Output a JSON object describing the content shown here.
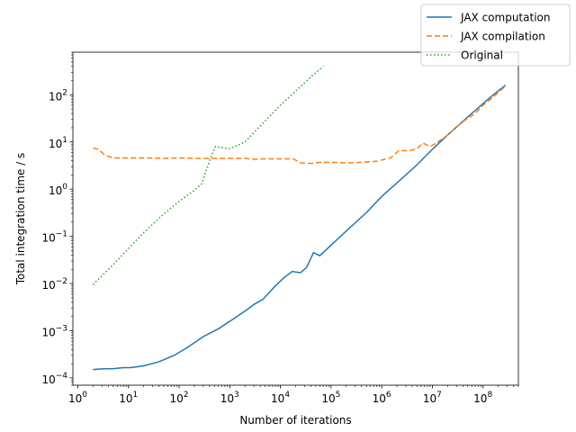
{
  "chart_data": {
    "type": "line",
    "xlabel": "Number of iterations",
    "ylabel": "Total integration time / s",
    "xscale": "log",
    "yscale": "log",
    "xlim": [
      0.8,
      500000000
    ],
    "ylim": [
      7e-05,
      800
    ],
    "grid": false,
    "legend_position": "top-right (outside plot)",
    "xticks": [
      {
        "value": 1,
        "base": "10",
        "exp": "0"
      },
      {
        "value": 10,
        "base": "10",
        "exp": "1"
      },
      {
        "value": 100,
        "base": "10",
        "exp": "2"
      },
      {
        "value": 1000,
        "base": "10",
        "exp": "3"
      },
      {
        "value": 10000,
        "base": "10",
        "exp": "4"
      },
      {
        "value": 100000,
        "base": "10",
        "exp": "5"
      },
      {
        "value": 1000000,
        "base": "10",
        "exp": "6"
      },
      {
        "value": 10000000,
        "base": "10",
        "exp": "7"
      },
      {
        "value": 100000000,
        "base": "10",
        "exp": "8"
      }
    ],
    "yticks": [
      {
        "value": 0.0001,
        "base": "10",
        "exp": "−4"
      },
      {
        "value": 0.001,
        "base": "10",
        "exp": "−3"
      },
      {
        "value": 0.01,
        "base": "10",
        "exp": "−2"
      },
      {
        "value": 0.1,
        "base": "10",
        "exp": "−1"
      },
      {
        "value": 1,
        "label": "10",
        "exp": "0"
      },
      {
        "value": 10,
        "base": "10",
        "exp": "1"
      },
      {
        "value": 100,
        "base": "10",
        "exp": "2"
      }
    ],
    "series": [
      {
        "name": "JAX computation",
        "color": "#1f77b4",
        "style": "solid",
        "points": [
          [
            2,
            0.00015
          ],
          [
            3,
            0.000155
          ],
          [
            5,
            0.000157
          ],
          [
            8,
            0.000165
          ],
          [
            11,
            0.000165
          ],
          [
            20,
            0.00018
          ],
          [
            40,
            0.00022
          ],
          [
            80,
            0.0003
          ],
          [
            150,
            0.00045
          ],
          [
            300,
            0.00075
          ],
          [
            600,
            0.0011
          ],
          [
            1200,
            0.0018
          ],
          [
            2200,
            0.0028
          ],
          [
            3000,
            0.0036
          ],
          [
            4500,
            0.0046
          ],
          [
            8000,
            0.009
          ],
          [
            12000,
            0.0135
          ],
          [
            17000,
            0.018
          ],
          [
            25000,
            0.017
          ],
          [
            33000,
            0.022
          ],
          [
            45000,
            0.045
          ],
          [
            60000,
            0.039
          ],
          [
            100000,
            0.065
          ],
          [
            200000,
            0.13
          ],
          [
            500000,
            0.32
          ],
          [
            1000000,
            0.7
          ],
          [
            2000000,
            1.35
          ],
          [
            5000000,
            3.3
          ],
          [
            10000000,
            7
          ],
          [
            20000000,
            14
          ],
          [
            50000000,
            34
          ],
          [
            100000000,
            65
          ],
          [
            160000000,
            100
          ],
          [
            280000000,
            160
          ]
        ]
      },
      {
        "name": "JAX compilation",
        "color": "#ff7f0e",
        "style": "dashed",
        "points": [
          [
            2,
            7.5
          ],
          [
            2.5,
            7.0
          ],
          [
            3.5,
            5.2
          ],
          [
            5,
            4.6
          ],
          [
            10,
            4.6
          ],
          [
            20,
            4.6
          ],
          [
            50,
            4.5
          ],
          [
            100,
            4.6
          ],
          [
            200,
            4.5
          ],
          [
            500,
            4.5
          ],
          [
            1000,
            4.5
          ],
          [
            2000,
            4.5
          ],
          [
            3000,
            4.3
          ],
          [
            5000,
            4.4
          ],
          [
            10000,
            4.4
          ],
          [
            18000,
            4.4
          ],
          [
            25000,
            3.6
          ],
          [
            40000,
            3.5
          ],
          [
            60000,
            3.7
          ],
          [
            100000,
            3.7
          ],
          [
            200000,
            3.6
          ],
          [
            400000,
            3.7
          ],
          [
            800000,
            3.9
          ],
          [
            1500000,
            4.6
          ],
          [
            2200000,
            6.6
          ],
          [
            3500000,
            6.5
          ],
          [
            5000000,
            7.2
          ],
          [
            6500000,
            9.5
          ],
          [
            9000000,
            8
          ],
          [
            12000000,
            9.5
          ],
          [
            20000000,
            14
          ],
          [
            40000000,
            27
          ],
          [
            70000000,
            40
          ],
          [
            100000000,
            60
          ],
          [
            160000000,
            90
          ],
          [
            280000000,
            155
          ]
        ]
      },
      {
        "name": "Original",
        "color": "#2ca02c",
        "style": "dotted",
        "points": [
          [
            2,
            0.0095
          ],
          [
            5,
            0.025
          ],
          [
            10,
            0.055
          ],
          [
            20,
            0.12
          ],
          [
            50,
            0.3
          ],
          [
            100,
            0.55
          ],
          [
            200,
            0.95
          ],
          [
            280,
            1.3
          ],
          [
            400,
            4
          ],
          [
            520,
            8
          ],
          [
            700,
            7.6
          ],
          [
            1000,
            7.2
          ],
          [
            2000,
            10
          ],
          [
            5000,
            28
          ],
          [
            10000,
            60
          ],
          [
            20000,
            120
          ],
          [
            40000,
            240
          ],
          [
            70000,
            400
          ]
        ]
      }
    ]
  }
}
